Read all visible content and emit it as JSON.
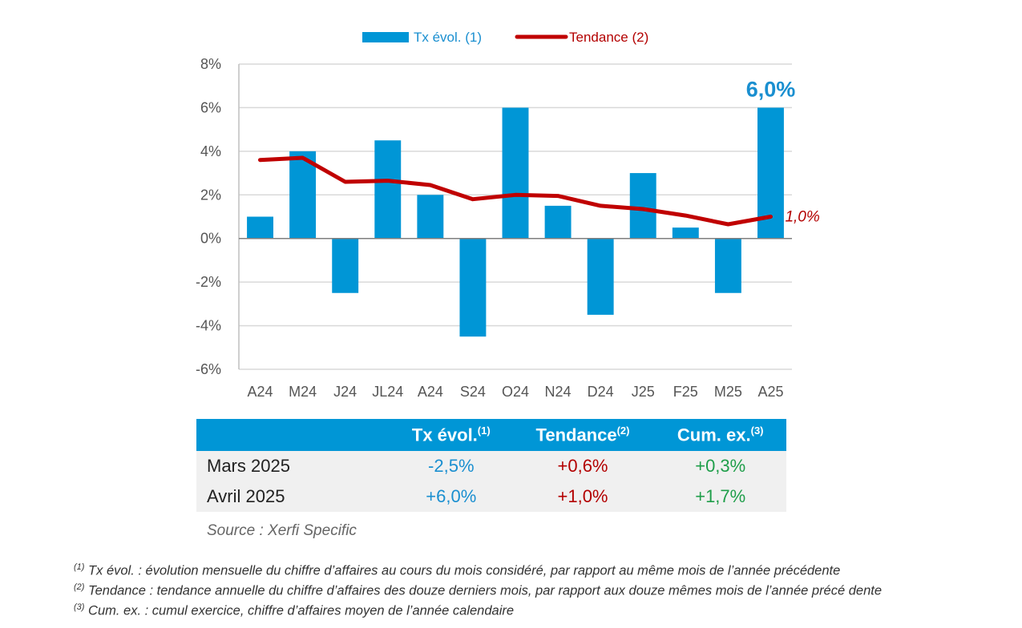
{
  "chart_data": {
    "type": "bar+line",
    "categories": [
      "A24",
      "M24",
      "J24",
      "JL24",
      "A24",
      "S24",
      "O24",
      "N24",
      "D24",
      "J25",
      "F25",
      "M25",
      "A25"
    ],
    "series": [
      {
        "name": "Tx évol. (1)",
        "type": "bar",
        "color": "#0096d6",
        "values": [
          1.0,
          4.0,
          -2.5,
          4.5,
          2.0,
          -4.5,
          6.0,
          1.5,
          -3.5,
          3.0,
          0.5,
          -2.5,
          6.0
        ]
      },
      {
        "name": "Tendance (2)",
        "type": "line",
        "color": "#c00000",
        "values": [
          3.6,
          3.7,
          2.6,
          2.65,
          2.45,
          1.8,
          2.0,
          1.95,
          1.5,
          1.35,
          1.05,
          0.65,
          1.0
        ]
      }
    ],
    "ylim": [
      -6,
      8
    ],
    "yticks": [
      -6,
      -4,
      -2,
      0,
      2,
      4,
      6,
      8
    ],
    "ytick_labels": [
      "-6%",
      "-4%",
      "-2%",
      "0%",
      "2%",
      "4%",
      "6%",
      "8%"
    ],
    "legend": [
      "Tx évol. (1)",
      "Tendance (2)"
    ],
    "legend_position": "top",
    "annotations": [
      {
        "text": "6,0%",
        "series": "Tx évol. (1)",
        "index": 12
      },
      {
        "text": "1,0%",
        "series": "Tendance (2)",
        "index": 12
      }
    ],
    "grid": true
  },
  "table": {
    "headers": [
      {
        "label": "",
        "sup": ""
      },
      {
        "label": "Tx évol.",
        "sup": "(1)"
      },
      {
        "label": "Tendance",
        "sup": "(2)"
      },
      {
        "label": "Cum. ex.",
        "sup": "(3)"
      }
    ],
    "rows": [
      {
        "label": "Mars 2025",
        "tx": "-2,5%",
        "tendance": "+0,6%",
        "cum": "+0,3%"
      },
      {
        "label": "Avril 2025",
        "tx": "+6,0%",
        "tendance": "+1,0%",
        "cum": "+1,7%"
      }
    ]
  },
  "source": "Source : Xerfi Specific",
  "notes": [
    {
      "sup": "(1)",
      "text": " Tx évol. : évolution mensuelle du chiffre d’affaires au cours du mois considéré, par rapport au même mois de l’année précédente"
    },
    {
      "sup": "(2)",
      "text": " Tendance : tendance annuelle du chiffre d’affaires des douze derniers mois, par rapport aux douze mêmes mois de l’année précé dente"
    },
    {
      "sup": "(3)",
      "text": " Cum. ex. : cumul exercice, chiffre d’affaires moyen de l’année calendaire"
    }
  ],
  "colors": {
    "bar": "#0096d6",
    "line": "#c00000",
    "annot_bar": "#1a8fd0",
    "annot_line": "#b30000",
    "green": "#1f9e4a"
  }
}
